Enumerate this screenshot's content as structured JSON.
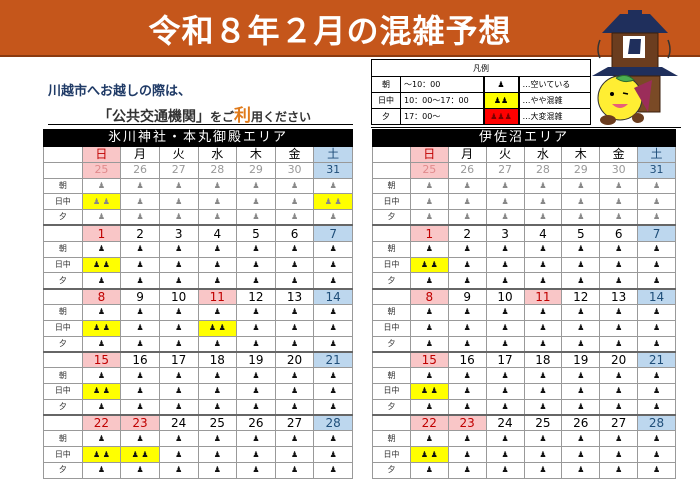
{
  "banner": {
    "title": "令和８年２月の混雑予想"
  },
  "intro": {
    "line1": "川越市へお越しの際は、",
    "line2_pre": "「公共交通機関」",
    "line2_mid": "をご",
    "line2_accent": "利",
    "line2_post": "用ください"
  },
  "legend": {
    "title": "凡例",
    "rows": [
      {
        "label": "朝",
        "time": "〜10：00",
        "icon": "1-person",
        "icon_text": "♟",
        "desc": "…空いている",
        "color": "#ffffff"
      },
      {
        "label": "日中",
        "time": "10：00〜17：00",
        "icon": "2-person",
        "icon_text": "♟♟",
        "desc": "…やや混雑",
        "color": "#ffff00"
      },
      {
        "label": "夕",
        "time": "17：00〜",
        "icon": "3-person",
        "icon_text": "♟♟♟",
        "desc": "…大変混雑",
        "color": "#ff0000"
      }
    ]
  },
  "colors": {
    "banner": "#c5561b",
    "sunday": "#f9c6c7",
    "saturday": "#bdd7ee",
    "busy_moderate": "#ffff00",
    "busy_heavy": "#ff0000"
  },
  "weekdays": [
    "日",
    "月",
    "火",
    "水",
    "木",
    "金",
    "土"
  ],
  "row_labels": [
    "朝",
    "日中",
    "夕"
  ],
  "icons": {
    "one": "♟",
    "two": "♟ ♟"
  },
  "areas": [
    {
      "name": "氷川神社・本丸御殿エリア",
      "weeks": [
        {
          "dates": [
            "25",
            "26",
            "27",
            "28",
            "29",
            "30",
            "31"
          ],
          "prev": true,
          "holidays": [
            0
          ],
          "levels": [
            [
              1,
              1,
              1,
              1,
              1,
              1,
              1
            ],
            [
              2,
              1,
              1,
              1,
              1,
              1,
              2
            ],
            [
              1,
              1,
              1,
              1,
              1,
              1,
              1
            ]
          ]
        },
        {
          "dates": [
            "1",
            "2",
            "3",
            "4",
            "5",
            "6",
            "7"
          ],
          "holidays": [
            0
          ],
          "levels": [
            [
              1,
              1,
              1,
              1,
              1,
              1,
              1
            ],
            [
              2,
              1,
              1,
              1,
              1,
              1,
              1
            ],
            [
              1,
              1,
              1,
              1,
              1,
              1,
              1
            ]
          ]
        },
        {
          "dates": [
            "8",
            "9",
            "10",
            "11",
            "12",
            "13",
            "14"
          ],
          "holidays": [
            0,
            3
          ],
          "levels": [
            [
              1,
              1,
              1,
              1,
              1,
              1,
              1
            ],
            [
              2,
              1,
              1,
              2,
              1,
              1,
              1
            ],
            [
              1,
              1,
              1,
              1,
              1,
              1,
              1
            ]
          ]
        },
        {
          "dates": [
            "15",
            "16",
            "17",
            "18",
            "19",
            "20",
            "21"
          ],
          "holidays": [
            0
          ],
          "levels": [
            [
              1,
              1,
              1,
              1,
              1,
              1,
              1
            ],
            [
              2,
              1,
              1,
              1,
              1,
              1,
              1
            ],
            [
              1,
              1,
              1,
              1,
              1,
              1,
              1
            ]
          ]
        },
        {
          "dates": [
            "22",
            "23",
            "24",
            "25",
            "26",
            "27",
            "28"
          ],
          "holidays": [
            0,
            1
          ],
          "levels": [
            [
              1,
              1,
              1,
              1,
              1,
              1,
              1
            ],
            [
              2,
              2,
              1,
              1,
              1,
              1,
              1
            ],
            [
              1,
              1,
              1,
              1,
              1,
              1,
              1
            ]
          ]
        }
      ]
    },
    {
      "name": "伊佐沼エリア",
      "weeks": [
        {
          "dates": [
            "25",
            "26",
            "27",
            "28",
            "29",
            "30",
            "31"
          ],
          "prev": true,
          "holidays": [
            0
          ],
          "levels": [
            [
              1,
              1,
              1,
              1,
              1,
              1,
              1
            ],
            [
              1,
              1,
              1,
              1,
              1,
              1,
              1
            ],
            [
              1,
              1,
              1,
              1,
              1,
              1,
              1
            ]
          ]
        },
        {
          "dates": [
            "1",
            "2",
            "3",
            "4",
            "5",
            "6",
            "7"
          ],
          "holidays": [
            0
          ],
          "levels": [
            [
              1,
              1,
              1,
              1,
              1,
              1,
              1
            ],
            [
              2,
              1,
              1,
              1,
              1,
              1,
              1
            ],
            [
              1,
              1,
              1,
              1,
              1,
              1,
              1
            ]
          ]
        },
        {
          "dates": [
            "8",
            "9",
            "10",
            "11",
            "12",
            "13",
            "14"
          ],
          "holidays": [
            0,
            3
          ],
          "levels": [
            [
              1,
              1,
              1,
              1,
              1,
              1,
              1
            ],
            [
              1,
              1,
              1,
              1,
              1,
              1,
              1
            ],
            [
              1,
              1,
              1,
              1,
              1,
              1,
              1
            ]
          ]
        },
        {
          "dates": [
            "15",
            "16",
            "17",
            "18",
            "19",
            "20",
            "21"
          ],
          "holidays": [
            0
          ],
          "levels": [
            [
              1,
              1,
              1,
              1,
              1,
              1,
              1
            ],
            [
              2,
              1,
              1,
              1,
              1,
              1,
              1
            ],
            [
              1,
              1,
              1,
              1,
              1,
              1,
              1
            ]
          ]
        },
        {
          "dates": [
            "22",
            "23",
            "24",
            "25",
            "26",
            "27",
            "28"
          ],
          "holidays": [
            0,
            1
          ],
          "levels": [
            [
              1,
              1,
              1,
              1,
              1,
              1,
              1
            ],
            [
              2,
              1,
              1,
              1,
              1,
              1,
              1
            ],
            [
              1,
              1,
              1,
              1,
              1,
              1,
              1
            ]
          ]
        }
      ]
    }
  ]
}
